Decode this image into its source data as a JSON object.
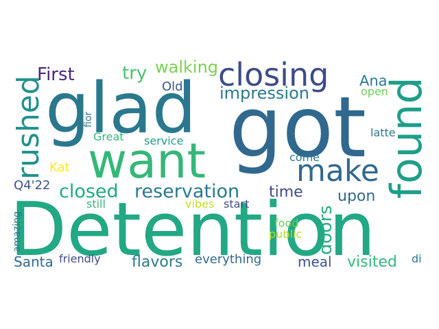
{
  "words": [
    {
      "id": "detention",
      "text": "Detention",
      "color": "#22a884",
      "rotated": false
    },
    {
      "id": "got",
      "text": "got",
      "color": "#31688e",
      "rotated": false
    },
    {
      "id": "glad",
      "text": "glad",
      "color": "#2a788e",
      "rotated": false
    },
    {
      "id": "want",
      "text": "want",
      "color": "#35b779",
      "rotated": false
    },
    {
      "id": "closing",
      "text": "closing",
      "color": "#3e4a89",
      "rotated": false
    },
    {
      "id": "found",
      "text": "found",
      "color": "#1f9e89",
      "rotated": true
    },
    {
      "id": "rushed",
      "text": "rushed",
      "color": "#21918c",
      "rotated": true
    },
    {
      "id": "make",
      "text": "make",
      "color": "#31688e",
      "rotated": false
    },
    {
      "id": "reservation",
      "text": "reservation",
      "color": "#2a788e",
      "rotated": false
    },
    {
      "id": "closed",
      "text": "closed",
      "color": "#22a884",
      "rotated": false
    },
    {
      "id": "first",
      "text": "First",
      "color": "#482878",
      "rotated": false
    },
    {
      "id": "try",
      "text": "try",
      "color": "#4ac16d",
      "rotated": false
    },
    {
      "id": "walking",
      "text": "walking",
      "color": "#7ad151",
      "rotated": false
    },
    {
      "id": "impression",
      "text": "impression",
      "color": "#2a788e",
      "rotated": false
    },
    {
      "id": "old",
      "text": "Old",
      "color": "#39568c",
      "rotated": false
    },
    {
      "id": "ana",
      "text": "Ana",
      "color": "#2a788e",
      "rotated": false
    },
    {
      "id": "open",
      "text": "open",
      "color": "#6ece58",
      "rotated": false
    },
    {
      "id": "fior",
      "text": "fior",
      "color": "#2a788e",
      "rotated": true
    },
    {
      "id": "great",
      "text": "Great",
      "color": "#35b779",
      "rotated": false
    },
    {
      "id": "service",
      "text": "service",
      "color": "#1f9e89",
      "rotated": false
    },
    {
      "id": "latte",
      "text": "latte",
      "color": "#2a788e",
      "rotated": false
    },
    {
      "id": "come",
      "text": "come",
      "color": "#2a788e",
      "rotated": false
    },
    {
      "id": "kat",
      "text": "Kat",
      "color": "#fde725",
      "rotated": false
    },
    {
      "id": "q422",
      "text": "Q4'22",
      "color": "#3b528b",
      "rotated": false
    },
    {
      "id": "time",
      "text": "time",
      "color": "#3e4a89",
      "rotated": false
    },
    {
      "id": "doors",
      "text": "doors",
      "color": "#27ad81",
      "rotated": true
    },
    {
      "id": "upon",
      "text": "upon",
      "color": "#31688e",
      "rotated": false
    },
    {
      "id": "still",
      "text": "still",
      "color": "#35b779",
      "rotated": false
    },
    {
      "id": "vibes",
      "text": "vibes",
      "color": "#c2df23",
      "rotated": false
    },
    {
      "id": "start",
      "text": "start",
      "color": "#3e4a89",
      "rotated": false
    },
    {
      "id": "amazing",
      "text": "amazing",
      "color": "#2a788e",
      "rotated": true
    },
    {
      "id": "food",
      "text": "food",
      "color": "#6ece58",
      "rotated": false
    },
    {
      "id": "public",
      "text": "public",
      "color": "#b5de2b",
      "rotated": false
    },
    {
      "id": "santa",
      "text": "Santa",
      "color": "#31688e",
      "rotated": false
    },
    {
      "id": "friendly",
      "text": "friendly",
      "color": "#3e4a89",
      "rotated": false
    },
    {
      "id": "flavors",
      "text": "flavors",
      "color": "#2a788e",
      "rotated": false
    },
    {
      "id": "everything",
      "text": "everything",
      "color": "#31688e",
      "rotated": false
    },
    {
      "id": "meal",
      "text": "meal",
      "color": "#3b528b",
      "rotated": false
    },
    {
      "id": "visited",
      "text": "visited",
      "color": "#35b779",
      "rotated": false
    },
    {
      "id": "di",
      "text": "di",
      "color": "#2a788e",
      "rotated": false
    }
  ]
}
